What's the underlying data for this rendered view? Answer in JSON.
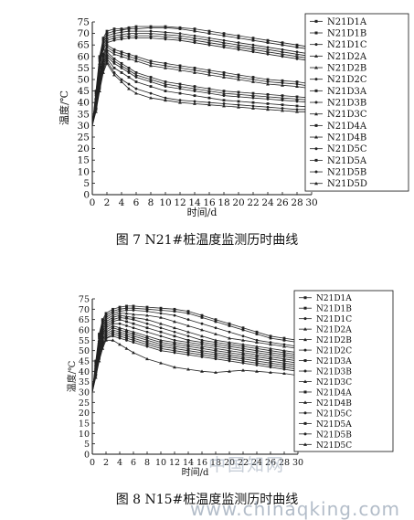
{
  "captions": {
    "fig7": "图 7 N21#桩温度监测历时曲线",
    "fig8": "图 8 N15#桩温度监测历时曲线"
  },
  "watermark": {
    "cn": "中国知网",
    "url": "www.chinaqking.com"
  },
  "colors": {
    "series": "#222222",
    "axis": "#111111",
    "watermark": "#9aa7b8"
  },
  "chart_data": [
    {
      "type": "line",
      "title": "图 7 N21#桩温度监测历时曲线",
      "xlabel": "时间/d",
      "ylabel": "温度/℃",
      "xlim": [
        0,
        30
      ],
      "ylim": [
        0,
        75
      ],
      "xticks": [
        0,
        2,
        4,
        6,
        8,
        10,
        12,
        14,
        16,
        18,
        20,
        22,
        24,
        26,
        28,
        30
      ],
      "yticks": [
        0,
        5,
        10,
        15,
        20,
        25,
        30,
        35,
        40,
        45,
        50,
        55,
        60,
        65,
        70,
        75
      ],
      "grid": false,
      "legend": "right",
      "x": [
        0,
        0.5,
        1,
        1.5,
        2,
        3,
        4,
        5,
        6,
        8,
        10,
        12,
        14,
        16,
        18,
        20,
        22,
        24,
        26,
        28,
        30
      ],
      "series": [
        {
          "name": "N21D1A",
          "values": [
            30,
            45,
            60,
            68,
            71,
            72,
            72,
            72.5,
            73,
            73,
            73,
            72.5,
            72,
            71,
            70,
            69,
            68,
            67,
            66,
            65,
            64
          ]
        },
        {
          "name": "N21D1B",
          "values": [
            30,
            44,
            59,
            67,
            70,
            71,
            71.5,
            72,
            72,
            72.5,
            72.5,
            72,
            71,
            70,
            69,
            68,
            67,
            66,
            65,
            64,
            63
          ]
        },
        {
          "name": "N21D1C",
          "values": [
            30,
            43,
            58,
            66,
            69,
            70,
            70.5,
            71,
            71,
            71,
            70.5,
            70,
            69,
            68,
            67,
            66,
            65,
            64,
            63,
            62,
            61
          ]
        },
        {
          "name": "N21D2A",
          "values": [
            30,
            42,
            57,
            65,
            68,
            69,
            69.5,
            70,
            70,
            70,
            69.5,
            69,
            68,
            67,
            66,
            65,
            64,
            63,
            62,
            61,
            60
          ]
        },
        {
          "name": "N21D2B",
          "values": [
            30,
            42,
            56,
            64,
            67,
            68,
            68.5,
            69,
            69,
            69,
            68.5,
            68,
            67,
            66,
            65,
            64,
            63,
            62,
            61,
            60,
            59
          ]
        },
        {
          "name": "N21D2C",
          "values": [
            30,
            41,
            55,
            63,
            66,
            67,
            67.5,
            68,
            68,
            68,
            67.5,
            67,
            66,
            65,
            64,
            63,
            62,
            61,
            60,
            59,
            58
          ]
        },
        {
          "name": "N21D3A",
          "values": [
            30,
            40,
            53,
            61,
            65,
            63,
            62,
            61,
            60,
            58,
            57,
            56,
            55,
            54,
            53,
            52,
            51,
            50,
            49.5,
            49,
            48
          ]
        },
        {
          "name": "N21D3B",
          "values": [
            30,
            40,
            52,
            60,
            64,
            62,
            61,
            60,
            59,
            57,
            56,
            55,
            54,
            53,
            52,
            51,
            50,
            49,
            48.5,
            48,
            47
          ]
        },
        {
          "name": "N21D3C",
          "values": [
            30,
            39,
            51,
            59,
            63,
            61,
            60,
            59,
            58,
            56,
            55,
            54,
            53,
            52,
            51,
            50,
            49,
            48,
            47.5,
            47,
            46
          ]
        },
        {
          "name": "N21D4A",
          "values": [
            30,
            39,
            50,
            58,
            62,
            59,
            57,
            55,
            53,
            51,
            49,
            48,
            47,
            46,
            45,
            44.5,
            44,
            43.5,
            43,
            42.5,
            42
          ]
        },
        {
          "name": "N21D4B",
          "values": [
            30,
            38,
            49,
            57,
            61,
            58,
            56,
            54,
            52,
            50,
            48,
            47,
            46,
            45,
            44,
            43.5,
            43,
            42.5,
            42,
            41.5,
            41
          ]
        },
        {
          "name": "N21D5C",
          "values": [
            30,
            38,
            48,
            56,
            60,
            57,
            55,
            53,
            51,
            49,
            47,
            46,
            45,
            44,
            43,
            42.5,
            42,
            41.5,
            41,
            40.5,
            40
          ]
        },
        {
          "name": "N21D5A",
          "values": [
            30,
            37,
            47,
            55,
            59,
            55,
            53,
            51,
            49,
            47,
            45,
            44,
            43,
            42,
            41,
            40.5,
            40,
            39.5,
            39,
            38.5,
            38
          ]
        },
        {
          "name": "N21D5B",
          "values": [
            30,
            37,
            46,
            54,
            58,
            53,
            50,
            48,
            46,
            44,
            42,
            41,
            40.5,
            40,
            39.5,
            39,
            38.5,
            38,
            37.5,
            37,
            37
          ]
        },
        {
          "name": "N21D5D",
          "values": [
            30,
            36,
            45,
            53,
            57,
            52,
            49,
            46,
            44,
            42,
            41,
            40,
            39.5,
            39,
            38.5,
            38,
            37.5,
            37,
            36.5,
            36,
            36
          ]
        }
      ]
    },
    {
      "type": "line",
      "title": "图 8 N15#桩温度监测历时曲线",
      "xlabel": "时间/d",
      "ylabel": "温度/℃",
      "xlim": [
        0,
        30
      ],
      "ylim": [
        0,
        75
      ],
      "xticks": [
        0,
        2,
        4,
        6,
        8,
        10,
        12,
        14,
        16,
        18,
        20,
        22,
        24,
        26,
        28,
        30
      ],
      "yticks": [
        0,
        5,
        10,
        15,
        20,
        25,
        30,
        35,
        40,
        45,
        50,
        55,
        60,
        65,
        70,
        75
      ],
      "grid": false,
      "legend": "right",
      "x": [
        0,
        0.5,
        1,
        1.5,
        2,
        3,
        4,
        5,
        6,
        8,
        10,
        12,
        14,
        16,
        18,
        20,
        22,
        24,
        26,
        28,
        30
      ],
      "series": [
        {
          "name": "N21D1A",
          "values": [
            30,
            45,
            58,
            65,
            68,
            70,
            71,
            71.5,
            71.5,
            71,
            70.5,
            70,
            69,
            67,
            65,
            63,
            61,
            59,
            57,
            56,
            55
          ]
        },
        {
          "name": "N21D1B",
          "values": [
            30,
            44,
            57,
            64,
            67,
            69,
            70,
            70.5,
            70.5,
            70,
            69.5,
            69,
            68,
            66,
            64,
            62,
            60,
            58,
            56,
            55,
            54
          ]
        },
        {
          "name": "N21D1C",
          "values": [
            30,
            43,
            56,
            63,
            66,
            68,
            69,
            69.5,
            69.5,
            69,
            68,
            67,
            65,
            63,
            61,
            59,
            57,
            55,
            54,
            53,
            52
          ]
        },
        {
          "name": "N21D2A",
          "values": [
            30,
            43,
            55,
            62,
            65,
            67,
            68,
            68,
            67.5,
            67,
            66,
            64,
            62,
            60,
            58,
            56,
            55,
            54,
            53,
            52,
            51
          ]
        },
        {
          "name": "N21D2B",
          "values": [
            30,
            42,
            54,
            61,
            64,
            66,
            67,
            66.5,
            66,
            65,
            63,
            61,
            59,
            57,
            55,
            54,
            53,
            52,
            51,
            50,
            49
          ]
        },
        {
          "name": "N21D2C",
          "values": [
            30,
            42,
            54,
            60,
            63,
            65,
            66,
            65.5,
            65,
            63,
            61,
            59,
            57,
            55,
            54,
            53,
            52,
            51,
            50,
            49,
            48
          ]
        },
        {
          "name": "N21D3A",
          "values": [
            30,
            41,
            53,
            59,
            62,
            64,
            65,
            64,
            63,
            61,
            59,
            57,
            55,
            54,
            53,
            52,
            51,
            50,
            49,
            48,
            47
          ]
        },
        {
          "name": "N21D3B",
          "values": [
            30,
            41,
            52,
            58,
            61,
            63,
            63,
            62,
            61,
            59,
            57,
            55,
            54,
            53,
            52,
            51,
            50,
            49,
            48,
            47,
            46
          ]
        },
        {
          "name": "N21D3C",
          "values": [
            30,
            40,
            51,
            57,
            60,
            62,
            61,
            60,
            59,
            57,
            55,
            54,
            53,
            52,
            51,
            50,
            49,
            48,
            47,
            46,
            45
          ]
        },
        {
          "name": "N21D4A",
          "values": [
            30,
            40,
            50,
            56,
            59,
            61,
            60,
            59,
            58,
            56,
            54,
            53,
            52,
            51,
            50,
            49,
            48,
            47,
            46,
            45,
            44
          ]
        },
        {
          "name": "N21D4B",
          "values": [
            30,
            39,
            49,
            55,
            58,
            60,
            59,
            58,
            57,
            55,
            53,
            52,
            51,
            50,
            49,
            48,
            47,
            46,
            45,
            44,
            43
          ]
        },
        {
          "name": "N21D5C",
          "values": [
            30,
            39,
            48,
            54,
            57,
            59,
            58,
            57,
            56,
            54,
            52,
            51,
            50,
            49,
            48,
            47,
            46,
            45,
            44,
            43,
            42
          ]
        },
        {
          "name": "N21D5A",
          "values": [
            30,
            38,
            47,
            53,
            56,
            58,
            57,
            56,
            55,
            53,
            51,
            50,
            49,
            48,
            47,
            46,
            45,
            44,
            43,
            42,
            41
          ]
        },
        {
          "name": "N21D5B",
          "values": [
            30,
            38,
            46,
            52,
            56,
            57,
            56,
            55,
            54,
            52,
            50,
            49,
            48,
            47,
            46,
            45,
            44,
            43,
            42,
            41,
            40
          ]
        },
        {
          "name": "N21D5C",
          "values": [
            30,
            37,
            45,
            51,
            55,
            55,
            53,
            51,
            49,
            46,
            44,
            42,
            41,
            40,
            39.5,
            40,
            40.5,
            40,
            39.5,
            39,
            38
          ]
        }
      ]
    }
  ]
}
